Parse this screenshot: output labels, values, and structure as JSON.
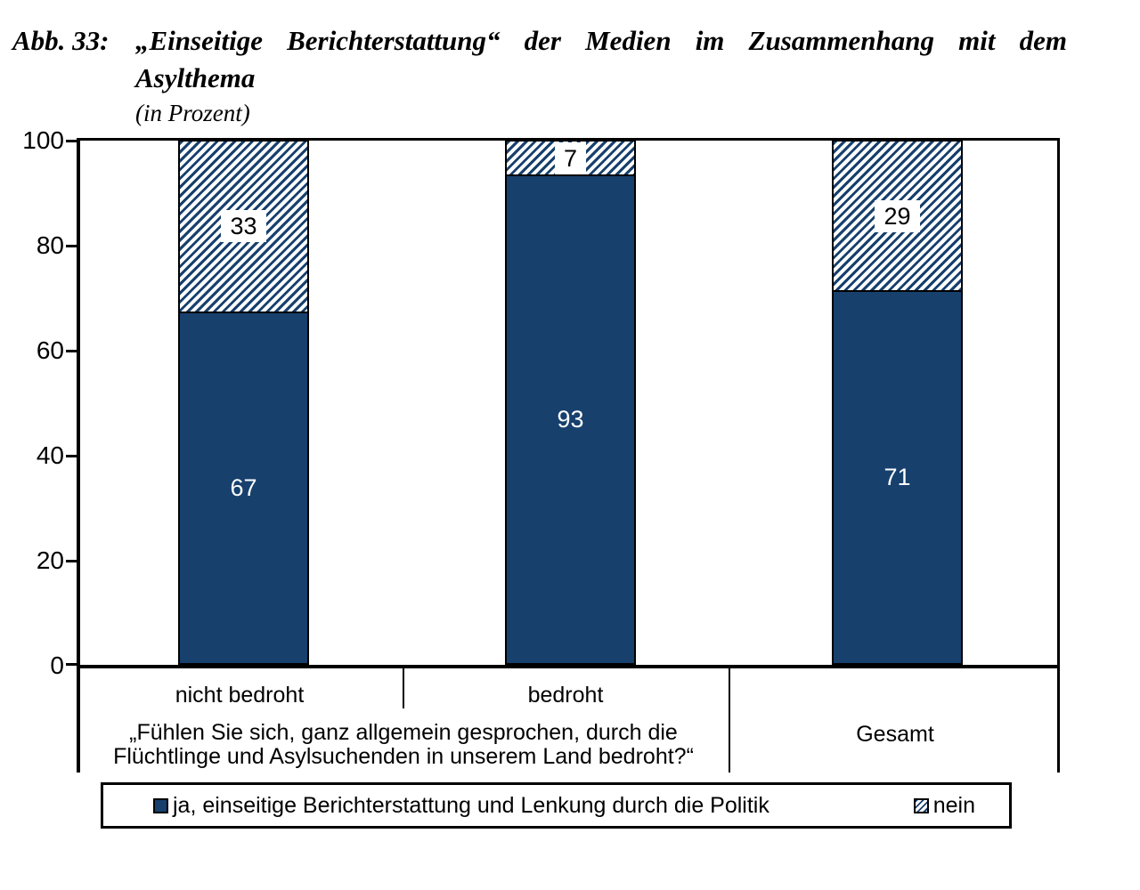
{
  "title": {
    "label": "Abb. 33:",
    "line1": "„Einseitige Berichterstattung“ der Medien im Zusammenhang mit dem",
    "line2": "Asylthema",
    "subtitle": "(in Prozent)"
  },
  "chart_data": {
    "type": "bar",
    "stacked": true,
    "orientation": "vertical",
    "title": "„Einseitige Berichterstattung“ der Medien im Zusammenhang mit dem Asylthema (in Prozent)",
    "categories": [
      "nicht bedroht",
      "bedroht",
      "Gesamt"
    ],
    "series": [
      {
        "name": "ja, einseitige Berichterstattung und Lenkung durch die Politik",
        "values": [
          67,
          93,
          71
        ],
        "color": "#17406d",
        "pattern": "solid"
      },
      {
        "name": "nein",
        "values": [
          33,
          7,
          29
        ],
        "color": "#17406d",
        "pattern": "diagonal-hatch-on-white"
      }
    ],
    "ylim": [
      0,
      100
    ],
    "yticks": [
      "100",
      "80",
      "60",
      "40",
      "20",
      "0"
    ],
    "grid": "off",
    "legend_position": "bottom-boxed",
    "group_question_line1": "„Fühlen Sie sich, ganz allgemein gesprochen, durch die",
    "group_question_line2": "Flüchtlinge und Asylsuchenden in unserem Land bedroht?“",
    "group_question_applies_to": [
      "nicht bedroht",
      "bedroht"
    ],
    "colors": {
      "bar_fill": "#17406d",
      "hatch_stripe": "#17406d",
      "background": "#ffffff",
      "axis": "#000000"
    }
  }
}
